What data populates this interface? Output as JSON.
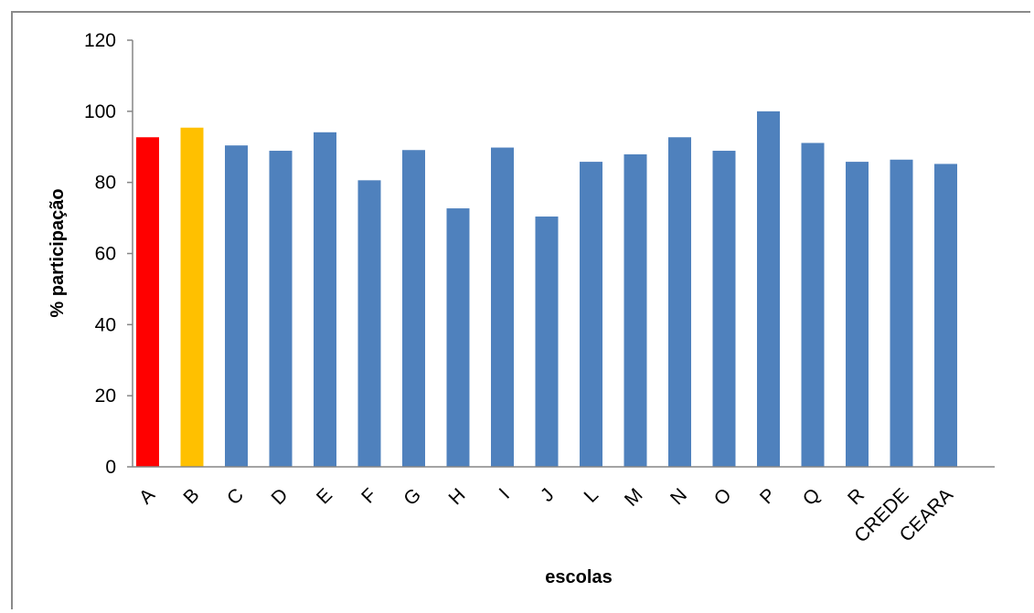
{
  "chart_data": {
    "type": "bar",
    "xlabel": "escolas",
    "ylabel": "% participação",
    "ylim": [
      0,
      120
    ],
    "yticks": [
      0,
      20,
      40,
      60,
      80,
      100,
      120
    ],
    "grid": false,
    "legend": "none",
    "categories": [
      "A",
      "B",
      "C",
      "D",
      "E",
      "F",
      "G",
      "H",
      "I",
      "J",
      "L",
      "M",
      "N",
      "O",
      "P",
      "Q",
      "R",
      "CREDE",
      "CEARA"
    ],
    "values": [
      92.7,
      95.4,
      90.4,
      88.9,
      94.1,
      80.6,
      89.1,
      72.7,
      89.8,
      70.4,
      85.8,
      87.9,
      92.7,
      88.9,
      100,
      91.1,
      85.8,
      86.4,
      85.2
    ],
    "colors": [
      "#ff0000",
      "#ffc000",
      "#4f81bd",
      "#4f81bd",
      "#4f81bd",
      "#4f81bd",
      "#4f81bd",
      "#4f81bd",
      "#4f81bd",
      "#4f81bd",
      "#4f81bd",
      "#4f81bd",
      "#4f81bd",
      "#4f81bd",
      "#4f81bd",
      "#4f81bd",
      "#4f81bd",
      "#4f81bd",
      "#4f81bd"
    ]
  }
}
